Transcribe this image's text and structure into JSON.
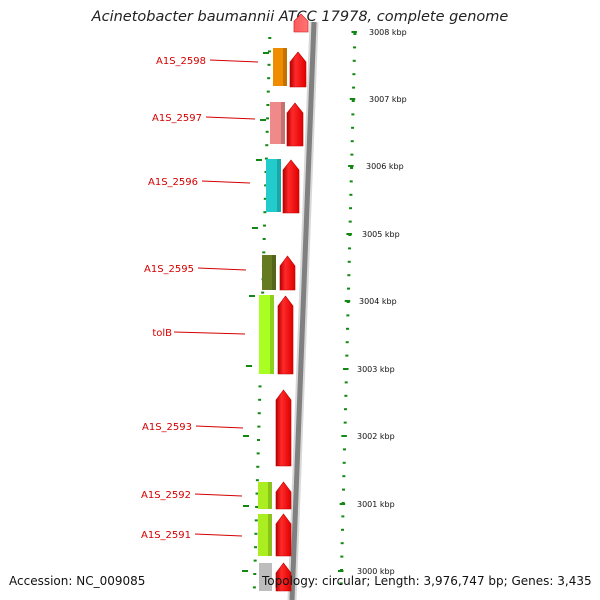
{
  "title": "Acinetobacter baumannii ATCC 17978, complete genome",
  "footer": {
    "accession": "Accession: NC_009085",
    "summary": "Topology: circular; Length: 3,976,747 bp; Genes: 3,435"
  },
  "colors": {
    "forward_cds": "#ff0000",
    "backbone": "#808080",
    "label": "#d40000",
    "tick": "#118811"
  },
  "scale_labels": [
    "3008 kbp",
    "3007 kbp",
    "3006 kbp",
    "3005 kbp",
    "3004 kbp",
    "3003 kbp",
    "3002 kbp",
    "3001 kbp",
    "3000 kbp"
  ],
  "genes": [
    {
      "name": "A1S_2598",
      "color": "#f08c00"
    },
    {
      "name": "A1S_2597",
      "color": "#f08a8a"
    },
    {
      "name": "A1S_2596",
      "color": "#22cccc"
    },
    {
      "name": "A1S_2595",
      "color": "#667a22"
    },
    {
      "name": "tolB",
      "color": "#aaff22"
    },
    {
      "name": "A1S_2593",
      "color": ""
    },
    {
      "name": "A1S_2592",
      "color": "#aaee22"
    },
    {
      "name": "A1S_2591",
      "color": "#aaee22"
    }
  ]
}
